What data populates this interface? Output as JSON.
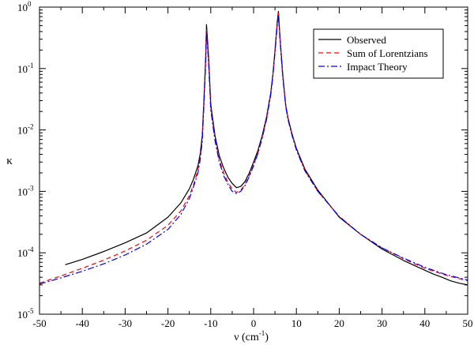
{
  "chart_data": {
    "type": "line",
    "xlabel_base": "ν (cm",
    "xlabel_sup": "-1",
    "xlabel_close": ")",
    "ylabel": "κ",
    "xlim": [
      -50,
      50
    ],
    "ylim": [
      1e-05,
      1
    ],
    "yscale": "log",
    "x_ticks": [
      -50,
      -40,
      -30,
      -20,
      -10,
      0,
      10,
      20,
      30,
      40,
      50
    ],
    "y_ticks": [
      {
        "base": "10",
        "exp": "-5",
        "value": 1e-05
      },
      {
        "base": "10",
        "exp": "-4",
        "value": 0.0001
      },
      {
        "base": "10",
        "exp": "-3",
        "value": 0.001
      },
      {
        "base": "10",
        "exp": "-2",
        "value": 0.01
      },
      {
        "base": "10",
        "exp": "-1",
        "value": 0.1
      },
      {
        "base": "10",
        "exp": "0",
        "value": 1
      }
    ],
    "grid": false,
    "legend_position": "top-right",
    "series": [
      {
        "name": "Observed",
        "color": "#000000",
        "dash": "solid",
        "x": [
          -44,
          -40,
          -35,
          -30,
          -25,
          -20,
          -17,
          -15,
          -14,
          -13,
          -12.5,
          -12,
          -11.6,
          -11.2,
          -11,
          -10.5,
          -10,
          -9,
          -8,
          -7,
          -6,
          -5,
          -4,
          -3,
          -2,
          -1,
          0,
          1,
          2,
          3,
          4,
          4.5,
          5,
          5.5,
          5.8,
          6.2,
          6.8,
          7.5,
          8,
          9,
          10,
          12,
          15,
          20,
          25,
          30,
          35,
          40,
          42,
          44,
          46,
          48,
          50
        ],
        "y": [
          6.4e-05,
          7.8e-05,
          0.000105,
          0.000145,
          0.00021,
          0.00038,
          0.00065,
          0.0011,
          0.0016,
          0.0026,
          0.004,
          0.008,
          0.03,
          0.15,
          0.52,
          0.15,
          0.026,
          0.008,
          0.0038,
          0.0024,
          0.0017,
          0.00135,
          0.00115,
          0.0012,
          0.00145,
          0.002,
          0.003,
          0.0046,
          0.008,
          0.016,
          0.04,
          0.08,
          0.2,
          0.55,
          0.85,
          0.3,
          0.08,
          0.026,
          0.016,
          0.0085,
          0.005,
          0.0023,
          0.00105,
          0.00038,
          0.0002,
          0.000115,
          7.5e-05,
          5.2e-05,
          4.5e-05,
          4e-05,
          3.5e-05,
          3.2e-05,
          3e-05
        ]
      },
      {
        "name": "Sum of Lorentzians",
        "color": "#ff0000",
        "dash": "6,4",
        "x": [
          -50,
          -45,
          -40,
          -35,
          -30,
          -25,
          -20,
          -17,
          -15,
          -14,
          -13,
          -12.5,
          -12,
          -11.6,
          -11.2,
          -11,
          -10.5,
          -10,
          -9,
          -8,
          -7,
          -6,
          -5,
          -4,
          -3,
          -2,
          -1,
          0,
          1,
          2,
          3,
          4,
          4.5,
          5,
          5.5,
          5.8,
          6.2,
          6.8,
          7.5,
          8,
          9,
          10,
          12,
          15,
          20,
          25,
          30,
          35,
          40,
          45,
          50
        ],
        "y": [
          3.2e-05,
          4.2e-05,
          5.6e-05,
          7.6e-05,
          0.000107,
          0.00016,
          0.00028,
          0.00048,
          0.00085,
          0.0013,
          0.0022,
          0.0035,
          0.007,
          0.027,
          0.13,
          0.44,
          0.13,
          0.023,
          0.0072,
          0.0033,
          0.002,
          0.0014,
          0.0011,
          0.00096,
          0.00105,
          0.0013,
          0.0018,
          0.0027,
          0.0042,
          0.0075,
          0.015,
          0.038,
          0.076,
          0.19,
          0.5,
          0.8,
          0.28,
          0.076,
          0.025,
          0.0155,
          0.0082,
          0.0048,
          0.0022,
          0.001,
          0.00039,
          0.0002,
          0.00012,
          8e-05,
          5.6e-05,
          4.3e-05,
          3.5e-05
        ]
      },
      {
        "name": "Impact Theory",
        "color": "#0000ff",
        "dash": "8,3,2,3",
        "x": [
          -50,
          -45,
          -40,
          -35,
          -30,
          -25,
          -20,
          -17,
          -15,
          -14,
          -13,
          -12.5,
          -12,
          -11.6,
          -11.2,
          -11,
          -10.5,
          -10,
          -9,
          -8,
          -7,
          -6,
          -5,
          -4,
          -3,
          -2,
          -1,
          0,
          1,
          2,
          3,
          4,
          4.5,
          5,
          5.5,
          5.8,
          6.2,
          6.8,
          7.5,
          8,
          9,
          10,
          12,
          15,
          20,
          25,
          30,
          35,
          40,
          45,
          50
        ],
        "y": [
          3.1e-05,
          3.9e-05,
          5e-05,
          6.6e-05,
          9.2e-05,
          0.000138,
          0.00024,
          0.00042,
          0.00076,
          0.0012,
          0.002,
          0.0032,
          0.0065,
          0.025,
          0.12,
          0.4,
          0.12,
          0.021,
          0.0066,
          0.003,
          0.0018,
          0.0013,
          0.001,
          0.00092,
          0.001,
          0.00125,
          0.00175,
          0.0026,
          0.0041,
          0.0073,
          0.0145,
          0.037,
          0.074,
          0.18,
          0.48,
          0.75,
          0.27,
          0.074,
          0.0245,
          0.015,
          0.008,
          0.0047,
          0.00215,
          0.001,
          0.00039,
          0.0002,
          0.00012,
          8.2e-05,
          5.8e-05,
          4.4e-05,
          3.6e-05
        ]
      }
    ]
  }
}
